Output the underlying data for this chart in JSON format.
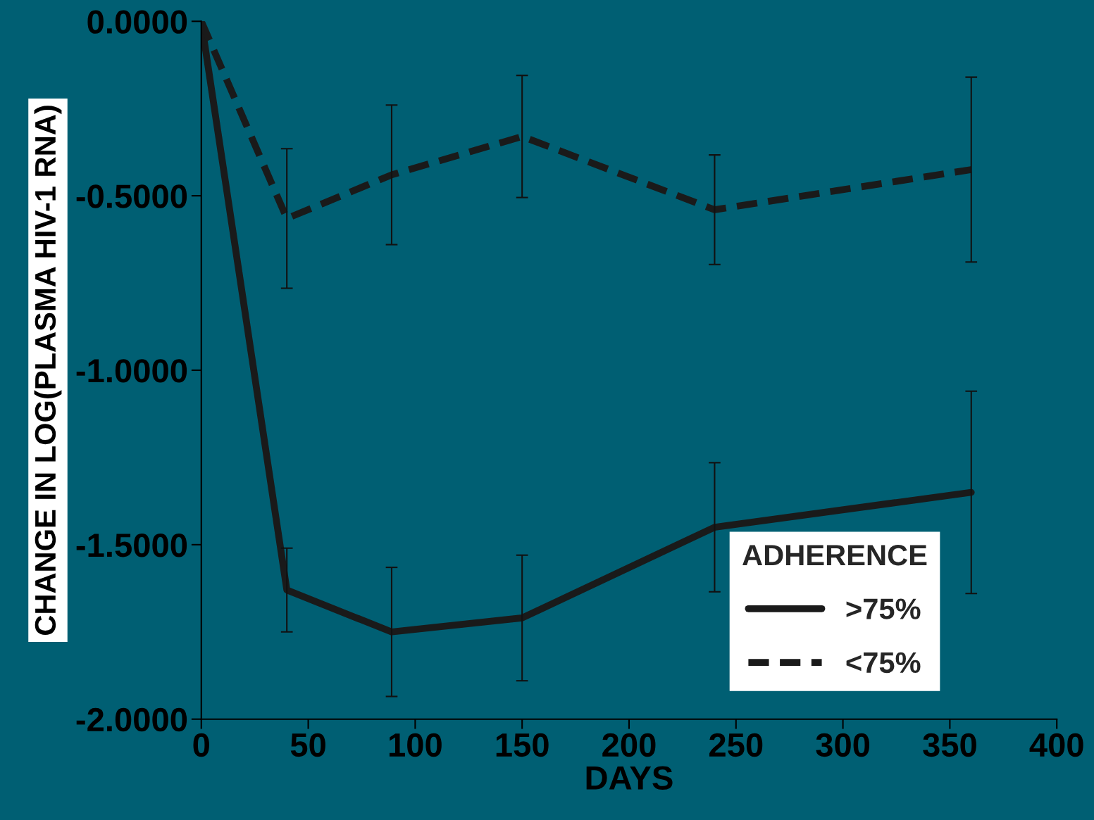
{
  "chart_data": {
    "type": "line",
    "xlabel": "DAYS",
    "ylabel": "CHANGE IN LOG(PLASMA HIV-1 RNA)",
    "legend_title": "ADHERENCE",
    "xlim": [
      0,
      400
    ],
    "xticks": [
      0,
      50,
      100,
      150,
      200,
      250,
      300,
      350,
      400
    ],
    "ylim": [
      -2,
      0
    ],
    "yticks": [
      {
        "value": 0,
        "label": "0.0000"
      },
      {
        "value": -0.5,
        "label": "-0.5000"
      },
      {
        "value": -1,
        "label": "-1.0000"
      },
      {
        "value": -1.5,
        "label": "-1.5000"
      },
      {
        "value": -2,
        "label": "-2.0000"
      }
    ],
    "grid": false,
    "legend": "bottom right",
    "series": [
      {
        "name": ">75%",
        "color": "#1a1a1a",
        "line_style": "solid",
        "x": [
          0,
          40,
          89,
          150,
          240,
          360
        ],
        "values": [
          0,
          -1.63,
          -1.75,
          -1.71,
          -1.45,
          -1.35
        ],
        "errors": [
          null,
          0.12,
          0.185,
          0.18,
          0.185,
          0.29
        ]
      },
      {
        "name": "<75%",
        "color": "#1a1a1a",
        "line_style": "dashed",
        "x": [
          0,
          40,
          89,
          150,
          240,
          360
        ],
        "values": [
          0,
          -0.565,
          -0.44,
          -0.33,
          -0.54,
          -0.425
        ],
        "errors": [
          null,
          0.2,
          0.2,
          0.175,
          0.157,
          0.265
        ]
      }
    ]
  }
}
